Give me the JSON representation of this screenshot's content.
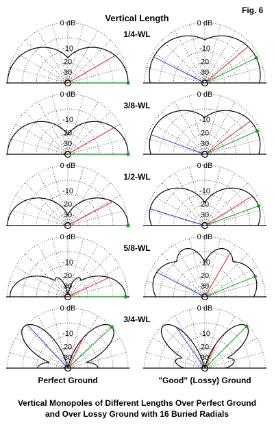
{
  "figure": {
    "fig_label": "Fig. 6",
    "title": "Vertical Length",
    "col_labels": [
      "Perfect Ground",
      "\"Good\" (Lossy) Ground"
    ],
    "caption": [
      "Vertical Monopoles of Different Lengths Over Perfect Ground",
      "and Over Lossy Ground with 16 Buried Radials"
    ],
    "scale_labels": [
      "0 dB",
      "-10",
      "20",
      "30"
    ],
    "colors": {
      "pattern": "#000000",
      "blue": "#1f3fd6",
      "red": "#e11b1b",
      "green": "#14a01a",
      "marker": "#14a01a"
    }
  },
  "rows": [
    {
      "label": "1/4-WL",
      "perfect": {
        "lobes": [
          [
            0,
            0,
            1.0,
            68
          ]
        ],
        "lines": [
          {
            "c": "green",
            "a": 0
          },
          {
            "c": "red",
            "a": 30
          }
        ]
      },
      "lossy": {
        "lobes": [
          [
            0,
            26,
            0.95,
            85
          ]
        ],
        "lines": [
          {
            "c": "blue",
            "a": 153
          },
          {
            "c": "red",
            "a": 40
          },
          {
            "c": "green",
            "a": 26
          }
        ]
      }
    },
    {
      "label": "3/8-WL",
      "perfect": {
        "lobes": [
          [
            0,
            0,
            1.0,
            60
          ]
        ],
        "lines": [
          {
            "c": "green",
            "a": 0
          },
          {
            "c": "red",
            "a": 30
          }
        ]
      },
      "lossy": {
        "lobes": [
          [
            0,
            24,
            0.95,
            70
          ]
        ],
        "lines": [
          {
            "c": "blue",
            "a": 160
          },
          {
            "c": "red",
            "a": 36
          },
          {
            "c": "green",
            "a": 24
          }
        ]
      }
    },
    {
      "label": "1/2-WL",
      "perfect": {
        "lobes": [
          [
            0,
            0,
            1.0,
            48
          ]
        ],
        "lines": [
          {
            "c": "green",
            "a": 0
          },
          {
            "c": "red",
            "a": 28
          }
        ]
      },
      "lossy": {
        "lobes": [
          [
            0,
            20,
            0.95,
            52
          ]
        ],
        "lines": [
          {
            "c": "blue",
            "a": 163
          },
          {
            "c": "red",
            "a": 32
          },
          {
            "c": "green",
            "a": 20
          }
        ]
      }
    },
    {
      "label": "5/8-WL",
      "perfect": {
        "lobes": [
          [
            0,
            0,
            0.96,
            36
          ],
          [
            1,
            58,
            0.37,
            30
          ]
        ],
        "lines": [
          {
            "c": "green",
            "a": 0
          },
          {
            "c": "red",
            "a": 25
          }
        ]
      },
      "lossy": {
        "lobes": [
          [
            0,
            22,
            0.9,
            48
          ],
          [
            1,
            66,
            0.86,
            50
          ]
        ],
        "lines": [
          {
            "c": "blue",
            "a": 153
          },
          {
            "c": "red",
            "a": 60
          },
          {
            "c": "green",
            "a": 22
          }
        ]
      }
    },
    {
      "label": "3/4-WL",
      "perfect": {
        "lobes": [
          [
            0,
            0,
            0.5,
            18
          ],
          [
            1,
            43,
            1.0,
            36
          ]
        ],
        "lines": [
          {
            "c": "green",
            "a": 43
          },
          {
            "c": "red",
            "a": 63
          },
          {
            "c": "blue",
            "a": 133
          }
        ]
      },
      "lossy": {
        "lobes": [
          [
            0,
            14,
            0.5,
            16
          ],
          [
            1,
            45,
            0.98,
            32
          ]
        ],
        "lines": [
          {
            "c": "blue",
            "a": 125
          },
          {
            "c": "red",
            "a": 65
          },
          {
            "c": "green",
            "a": 45
          }
        ]
      }
    }
  ]
}
